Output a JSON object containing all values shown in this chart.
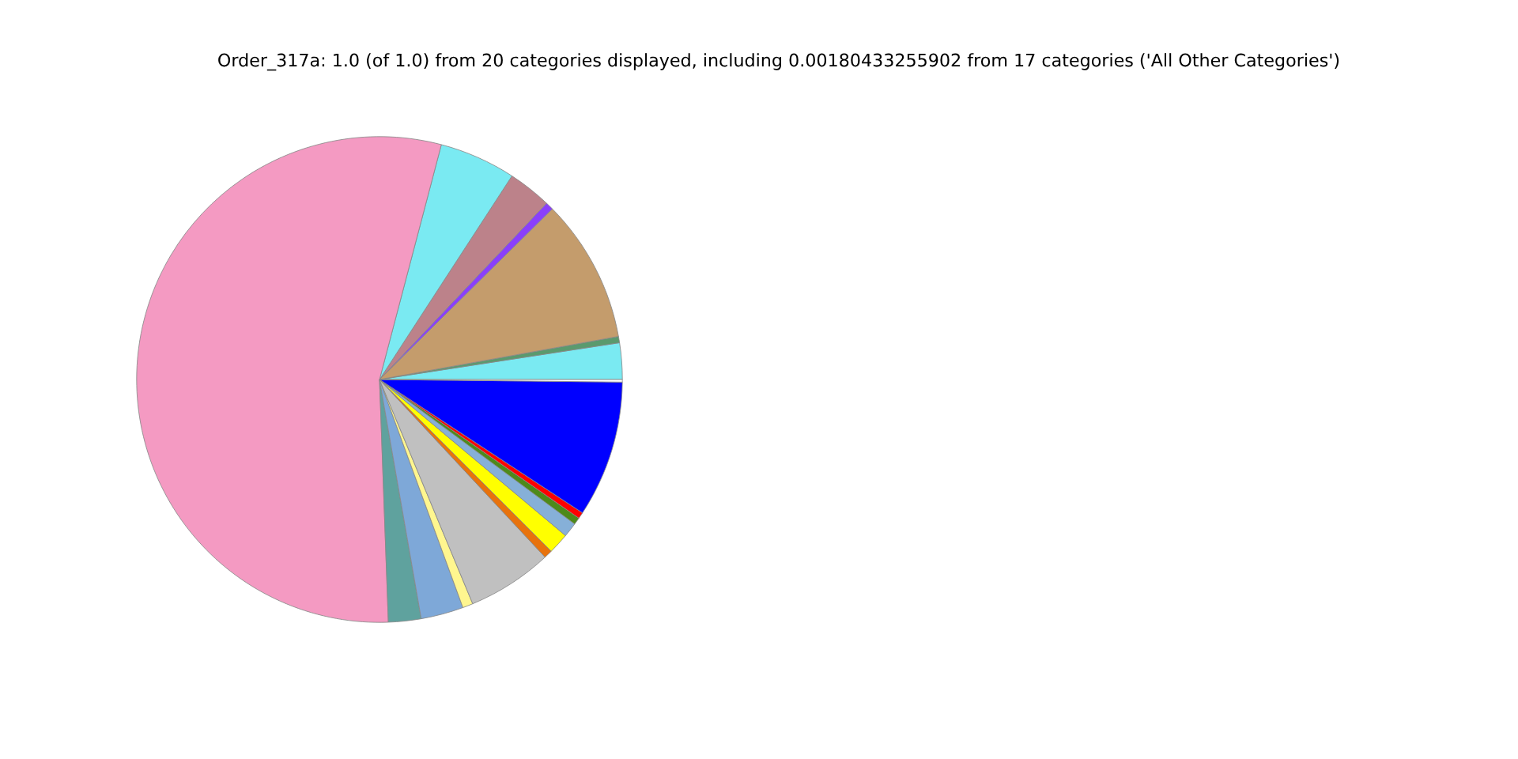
{
  "chart_data": {
    "type": "pie",
    "title": "Order_317a: 1.0 (of 1.0) from 20 categories displayed, including 0.00180433255902 from 17 categories ('All Other Categories')",
    "categories": [
      null,
      null,
      null,
      null,
      null,
      null,
      null,
      null,
      null,
      null,
      null,
      null,
      null,
      null,
      null,
      null,
      null,
      null
    ],
    "values": [
      2.42,
      0.42,
      9.56,
      0.53,
      2.89,
      5.08,
      54.68,
      2.17,
      2.83,
      0.69,
      5.67,
      0.56,
      1.39,
      0.97,
      0.47,
      0.42,
      9.08,
      0.17
    ],
    "colors": [
      "#7aeaf2",
      "#5a9a6e",
      "#c49c6c",
      "#8a3ffc",
      "#bc828a",
      "#7aeaf2",
      "#f49ac2",
      "#5fa29e",
      "#7ea8d8",
      "#fff68f",
      "#c0c0c0",
      "#e8720c",
      "#ffff00",
      "#86b0d8",
      "#4d8a1a",
      "#ff0000",
      "#0000ff",
      "#ffffff"
    ]
  }
}
